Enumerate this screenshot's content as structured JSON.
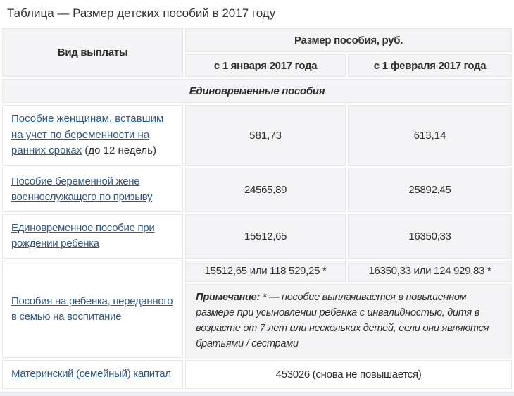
{
  "colors": {
    "link": "#34577c",
    "cell_gray": "#f4f4f6",
    "border": "#e8e8ec",
    "text": "#2e2e2e"
  },
  "page": {
    "title": "Таблица — Размер детских пособий в 2017 году"
  },
  "table": {
    "header": {
      "kind": "Вид выплаты",
      "size_group": "Размер пособия, руб.",
      "jan": "с 1 января 2017 года",
      "feb": "с 1 февраля 2017 года"
    },
    "section": "Единовременные пособия",
    "rows": [
      {
        "link": "Пособие женщинам, вставшим на учет по беременности на ранних сроках",
        "suffix": " (до 12 недель)",
        "jan": "581,73",
        "feb": "613,14"
      },
      {
        "link": "Пособие беременной жене военнослужащего по призыву",
        "jan": "24565,89",
        "feb": "25892,45"
      },
      {
        "link": "Единовременное пособие при рождении ребенка",
        "jan": "15512,65",
        "feb": "16350,33"
      },
      {
        "link": "Пособия на ребенка, переданного в семью на воспитание",
        "jan": "15512,65 или 118 529,25 *",
        "feb": "16350,33 или 124 929,83 *",
        "note_label": "Примечание:",
        "note_text": " * — пособие выплачивается в повышенном размере при усыновлении ребенка с инвалидностью, дитя в возрасте от 7 лет или нескольких детей, если они являются братьями / сестрами"
      },
      {
        "link": "Материнский (семейный) капитал",
        "value": "453026 (снова не повышается)"
      }
    ]
  }
}
